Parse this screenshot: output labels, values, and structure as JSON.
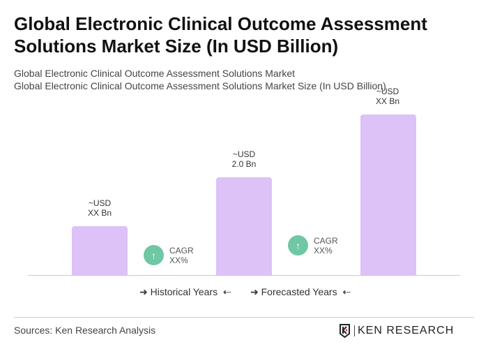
{
  "title": "Global Electronic Clinical Outcome Assessment Solutions Market Size (In USD Billion)",
  "subtitle1": "Global Electronic Clinical Outcome Assessment Solutions Market",
  "subtitle2": "Global Electronic Clinical Outcome Assessment Solutions Market Size (In USD Billion)",
  "chart_data": {
    "type": "bar",
    "categories": [
      "",
      "",
      ""
    ],
    "values": [
      null,
      2.0,
      null
    ],
    "bar_labels": [
      {
        "line1": "~USD",
        "line2": "XX Bn"
      },
      {
        "line1": "~USD",
        "line2": "2.0 Bn"
      },
      {
        "line1": "~USD",
        "line2": "XX Bn"
      }
    ],
    "bar_color": "#dcc2f7",
    "cagr": [
      {
        "line1": "CAGR",
        "line2": "XX%"
      },
      {
        "line1": "CAGR",
        "line2": "XX%"
      }
    ],
    "cagr_color": "#6fc7a4",
    "legend": [
      "Historical Years",
      "Forecasted Years"
    ],
    "grid": false
  },
  "icons": {
    "cagr": "arrow-up-icon",
    "legend_left": "arrow-right-icon",
    "legend_right": "arrow-left-icon"
  },
  "sources": "Sources: Ken Research Analysis",
  "logo_text": "KEN RESEARCH"
}
